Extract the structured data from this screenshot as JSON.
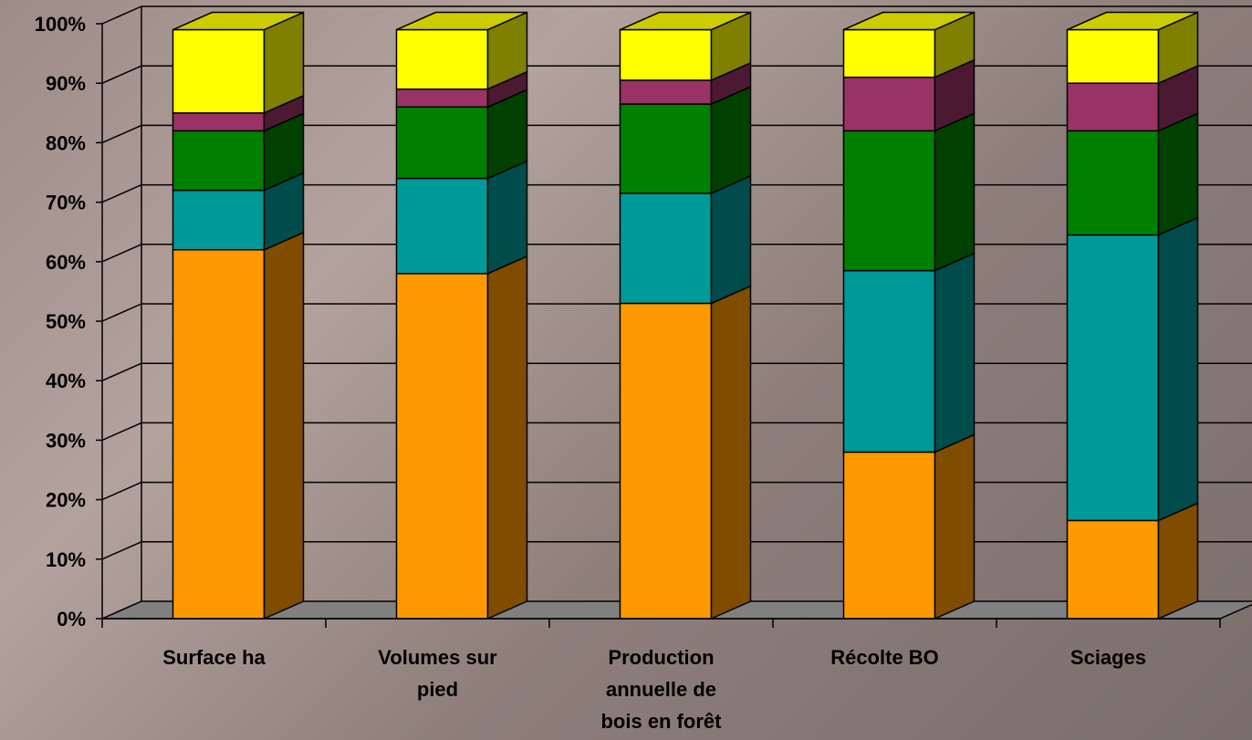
{
  "chart_data": {
    "type": "bar",
    "stacked": "percent",
    "three_d": true,
    "title": "",
    "xlabel": "",
    "ylabel": "",
    "ylim": [
      0,
      100
    ],
    "grid": true,
    "legend": "none",
    "y_ticks": [
      "0%",
      "10%",
      "20%",
      "30%",
      "40%",
      "50%",
      "60%",
      "70%",
      "80%",
      "90%",
      "100%"
    ],
    "categories": [
      [
        "Surface ha"
      ],
      [
        "Volumes sur",
        "pied"
      ],
      [
        "Production",
        "annuelle de",
        "bois en forêt"
      ],
      [
        "Récolte BO"
      ],
      [
        "Sciages"
      ]
    ],
    "series": [
      {
        "color": "#FF9900",
        "side_color": "#7F4C00",
        "values": [
          62,
          58,
          53,
          28,
          16.5
        ]
      },
      {
        "color": "#009999",
        "side_color": "#004C4C",
        "values": [
          10,
          16,
          18.5,
          30.5,
          48
        ]
      },
      {
        "color": "#008000",
        "side_color": "#004000",
        "values": [
          10,
          12,
          15,
          23.5,
          17.5
        ]
      },
      {
        "color": "#993366",
        "side_color": "#4C1933",
        "values": [
          3,
          3,
          4,
          9,
          8
        ]
      },
      {
        "color": "#FFFF00",
        "side_color": "#7F7F00",
        "values": [
          14,
          10,
          8.5,
          8,
          9
        ]
      }
    ],
    "floor_color": "#808080",
    "grid_color": "#000000"
  }
}
